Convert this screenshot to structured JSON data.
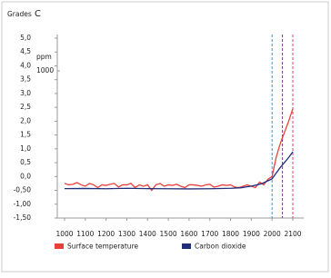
{
  "chart_data": {
    "type": "line",
    "ylabel": "Grades",
    "ylabel_unit": "C",
    "y2label": "ppm",
    "xlim": [
      1000,
      2100
    ],
    "xticks": [
      1000,
      1100,
      1200,
      1300,
      1400,
      1500,
      1600,
      1700,
      1800,
      1900,
      2000,
      2100
    ],
    "ylim": [
      -1.5,
      5
    ],
    "yticks": [
      {
        "value": 5,
        "label": "5,0"
      },
      {
        "value": 4.5,
        "label": "4,5"
      },
      {
        "value": 4,
        "label": "4,0"
      },
      {
        "value": 3.5,
        "label": "3,5"
      },
      {
        "value": 3,
        "label": "3,0"
      },
      {
        "value": 2.5,
        "label": "2,5"
      },
      {
        "value": 2,
        "label": "2,0"
      },
      {
        "value": 1.5,
        "label": "1,5"
      },
      {
        "value": 1,
        "label": "1,0"
      },
      {
        "value": 0.5,
        "label": "0,5"
      },
      {
        "value": 0,
        "label": "0,0"
      },
      {
        "value": -0.5,
        "label": "-0,50"
      },
      {
        "value": -1,
        "label": "-1,00"
      },
      {
        "value": -1.5,
        "label": "-1,50"
      }
    ],
    "y2lim": [
      100,
      1200
    ],
    "y2ticks": [
      1000
    ],
    "vlines": [
      2000,
      2050,
      2100
    ],
    "vline_colors": [
      "#3a8fd0",
      "#7a3a8a",
      "#e0407a"
    ],
    "legend": "bottom",
    "series": [
      {
        "name": "Surface temperature",
        "color": "#e8413c",
        "x": [
          1000,
          1020,
          1040,
          1060,
          1080,
          1100,
          1120,
          1140,
          1160,
          1180,
          1200,
          1220,
          1240,
          1260,
          1280,
          1300,
          1320,
          1340,
          1360,
          1380,
          1400,
          1420,
          1440,
          1460,
          1480,
          1500,
          1520,
          1540,
          1560,
          1580,
          1600,
          1620,
          1640,
          1660,
          1680,
          1700,
          1720,
          1740,
          1760,
          1780,
          1800,
          1820,
          1840,
          1860,
          1880,
          1900,
          1920,
          1940,
          1960,
          1980,
          2000,
          2020,
          2040,
          2060,
          2080,
          2100
        ],
        "values": [
          -0.25,
          -0.3,
          -0.28,
          -0.22,
          -0.3,
          -0.35,
          -0.25,
          -0.3,
          -0.4,
          -0.3,
          -0.32,
          -0.28,
          -0.25,
          -0.38,
          -0.3,
          -0.3,
          -0.25,
          -0.4,
          -0.3,
          -0.35,
          -0.3,
          -0.5,
          -0.3,
          -0.25,
          -0.35,
          -0.3,
          -0.32,
          -0.28,
          -0.35,
          -0.4,
          -0.3,
          -0.3,
          -0.32,
          -0.35,
          -0.3,
          -0.28,
          -0.38,
          -0.35,
          -0.3,
          -0.32,
          -0.3,
          -0.38,
          -0.4,
          -0.35,
          -0.3,
          -0.35,
          -0.4,
          -0.2,
          -0.3,
          -0.1,
          0.0,
          0.7,
          1.2,
          1.6,
          2.0,
          2.45
        ]
      },
      {
        "name": "Carbon dioxide",
        "color": "#1f2f7a",
        "axis": "y2",
        "x": [
          1000,
          1100,
          1200,
          1300,
          1400,
          1500,
          1600,
          1700,
          1800,
          1850,
          1900,
          1950,
          2000,
          2020,
          2040,
          2060,
          2080,
          2100
        ],
        "values": [
          280,
          281,
          279,
          282,
          280,
          279,
          278,
          279,
          282,
          285,
          295,
          310,
          340,
          375,
          410,
          440,
          470,
          505
        ]
      }
    ]
  }
}
